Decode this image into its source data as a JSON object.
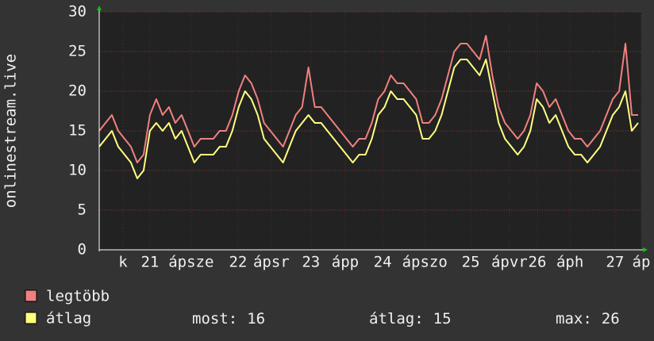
{
  "chart_data": {
    "type": "line",
    "y_label": "onlinestream.live",
    "x": [
      0,
      2,
      4,
      6,
      8,
      10,
      12,
      14,
      16,
      18,
      20,
      22,
      24,
      26,
      28,
      30,
      32,
      34,
      36,
      38,
      40,
      42,
      44,
      46,
      48,
      50,
      52,
      54,
      56,
      58,
      60,
      62,
      64,
      66,
      68,
      70,
      72,
      74,
      76,
      78,
      80,
      82,
      84,
      86,
      88,
      90,
      92,
      94,
      96,
      98,
      100,
      102,
      104,
      106,
      108,
      110,
      112,
      114,
      116,
      118,
      120,
      122,
      124,
      126,
      128,
      130,
      132,
      134,
      136,
      138,
      140,
      142,
      144,
      146,
      148,
      150,
      152,
      154,
      156,
      158,
      160,
      162,
      164,
      166,
      168,
      170
    ],
    "series": [
      {
        "name": "legtöbb",
        "color": "#f08080",
        "values": [
          15,
          16,
          17,
          15,
          14,
          13,
          11,
          12,
          17,
          19,
          17,
          18,
          16,
          17,
          15,
          13,
          14,
          14,
          14,
          15,
          15,
          17,
          20,
          22,
          21,
          19,
          16,
          15,
          14,
          13,
          15,
          17,
          18,
          23,
          18,
          18,
          17,
          16,
          15,
          14,
          13,
          14,
          14,
          16,
          19,
          20,
          22,
          21,
          21,
          20,
          19,
          16,
          16,
          17,
          19,
          22,
          25,
          26,
          26,
          25,
          24,
          27,
          22,
          18,
          16,
          15,
          14,
          15,
          17,
          21,
          20,
          18,
          19,
          17,
          15,
          14,
          14,
          13,
          14,
          15,
          17,
          19,
          20,
          26,
          17,
          17
        ]
      },
      {
        "name": "átlag",
        "color": "#ffff80",
        "values": [
          13,
          14,
          15,
          13,
          12,
          11,
          9,
          10,
          15,
          16,
          15,
          16,
          14,
          15,
          13,
          11,
          12,
          12,
          12,
          13,
          13,
          15,
          18,
          20,
          19,
          17,
          14,
          13,
          12,
          11,
          13,
          15,
          16,
          17,
          16,
          16,
          15,
          14,
          13,
          12,
          11,
          12,
          12,
          14,
          17,
          18,
          20,
          19,
          19,
          18,
          17,
          14,
          14,
          15,
          17,
          20,
          23,
          24,
          24,
          23,
          22,
          24,
          20,
          16,
          14,
          13,
          12,
          13,
          15,
          19,
          18,
          16,
          17,
          15,
          13,
          12,
          12,
          11,
          12,
          13,
          15,
          17,
          18,
          20,
          15,
          16
        ]
      }
    ],
    "xlim": [
      0,
      171
    ],
    "xticks": [
      {
        "value": 7.5,
        "label": "k"
      },
      {
        "value": 16,
        "label": "21"
      },
      {
        "value": 29,
        "label": "ápsze"
      },
      {
        "value": 43.8,
        "label": "22"
      },
      {
        "value": 54.3,
        "label": "ápsr"
      },
      {
        "value": 66.8,
        "label": "23"
      },
      {
        "value": 77.6,
        "label": "ápp"
      },
      {
        "value": 89.4,
        "label": "24"
      },
      {
        "value": 102.7,
        "label": "ápszo"
      },
      {
        "value": 117.2,
        "label": "25"
      },
      {
        "value": 129.4,
        "label": "ápvr"
      },
      {
        "value": 138.2,
        "label": "26"
      },
      {
        "value": 148.5,
        "label": "áph"
      },
      {
        "value": 162.7,
        "label": "27"
      },
      {
        "value": 171,
        "label": "áp"
      }
    ],
    "ylim": [
      0,
      30
    ],
    "yticks": [
      0,
      5,
      10,
      15,
      20,
      25,
      30
    ],
    "grid": true,
    "stats": [
      {
        "label": "most:",
        "value": 16
      },
      {
        "label": "átlag:",
        "value": 15
      },
      {
        "label": "max:",
        "value": 26
      }
    ]
  }
}
